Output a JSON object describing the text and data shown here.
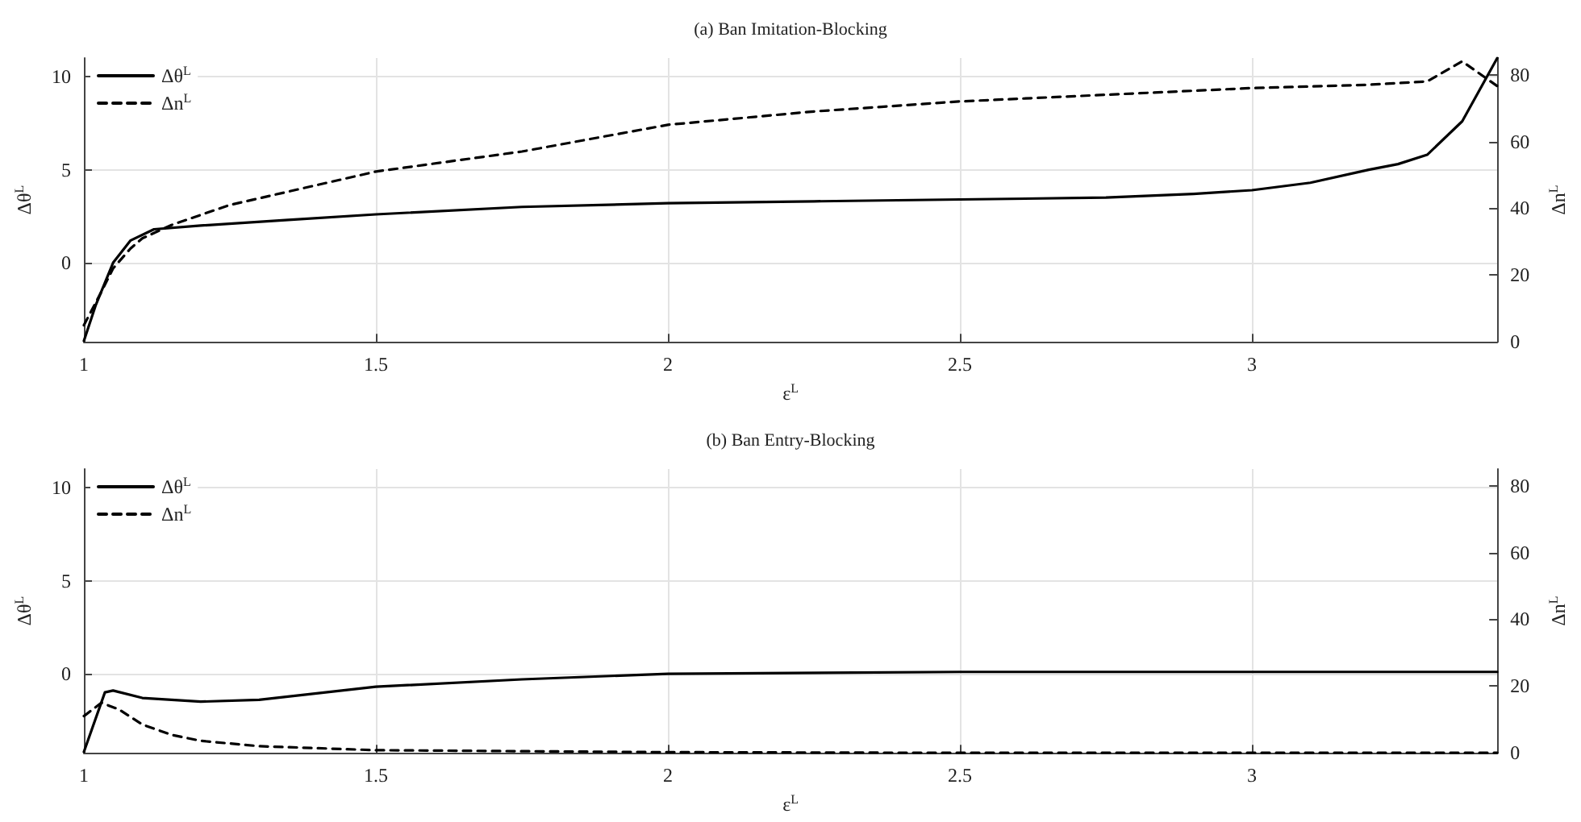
{
  "chart_data": [
    {
      "type": "line",
      "title": "(a) Ban Imitation-Blocking",
      "xlabel": "ε$^{L}$",
      "ylabel": "Δθ$^{L}$",
      "y2label": "Δn$^{L}$",
      "xlim": [
        1,
        3.42
      ],
      "xticks": [
        1,
        1.5,
        2,
        2.5,
        3
      ],
      "ylim": [
        -4.25,
        11
      ],
      "yticks": [
        0,
        5,
        10
      ],
      "y2lim": [
        0,
        85
      ],
      "y2ticks": [
        0,
        20,
        40,
        60,
        80
      ],
      "grid": true,
      "legend": "top left",
      "marker": "none",
      "series": [
        {
          "name": "Δθ$^{L}$",
          "color": "#000000",
          "line_style": "solid",
          "x": [
            1,
            1.02,
            1.05,
            1.08,
            1.12,
            1.2,
            1.35,
            1.5,
            1.75,
            2,
            2.25,
            2.5,
            2.75,
            2.9,
            3,
            3.1,
            3.2,
            3.25,
            3.3,
            3.36,
            3.42
          ],
          "values": [
            -4.2,
            -2.3,
            0,
            1.2,
            1.8,
            2.0,
            2.3,
            2.6,
            3.0,
            3.2,
            3.3,
            3.4,
            3.5,
            3.7,
            3.9,
            4.3,
            5.0,
            5.3,
            5.8,
            7.6,
            11.0
          ]
        },
        {
          "name": "Δn$^{L}$",
          "color": "#000000",
          "line_style": "dashed",
          "axis": "y2",
          "x": [
            1,
            1.03,
            1.05,
            1.08,
            1.1,
            1.15,
            1.25,
            1.5,
            1.75,
            2,
            2.25,
            2.5,
            2.75,
            3,
            3.2,
            3.3,
            3.36,
            3.42
          ],
          "values": [
            5,
            15,
            22,
            28,
            31,
            35,
            41,
            51,
            57,
            65,
            69,
            72,
            74,
            76,
            77,
            78,
            84,
            76.6
          ]
        }
      ]
    },
    {
      "type": "line",
      "title": "(b) Ban Entry-Blocking",
      "xlabel": "ε$^{L}$",
      "ylabel": "Δθ$^{L}$",
      "y2label": "Δn$^{L}$",
      "xlim": [
        1,
        3.42
      ],
      "xticks": [
        1,
        1.5,
        2,
        2.5,
        3
      ],
      "ylim": [
        -4.25,
        11
      ],
      "yticks": [
        0,
        5,
        10
      ],
      "y2lim": [
        0,
        85
      ],
      "y2ticks": [
        0,
        20,
        40,
        60,
        80
      ],
      "grid": true,
      "legend": "top left",
      "marker": "none",
      "series": [
        {
          "name": "Δθ$^{L}$",
          "color": "#000000",
          "line_style": "solid",
          "x": [
            1,
            1.036,
            1.05,
            1.1,
            1.2,
            1.3,
            1.5,
            1.75,
            2,
            2.5,
            3,
            3.42
          ],
          "values": [
            -4.2,
            -1.0,
            -0.9,
            -1.3,
            -1.5,
            -1.4,
            -0.7,
            -0.3,
            0,
            0.1,
            0.1,
            0.1
          ]
        },
        {
          "name": "Δn$^{L}$",
          "color": "#000000",
          "line_style": "dashed",
          "axis": "y2",
          "x": [
            1,
            1.03,
            1.06,
            1.1,
            1.15,
            1.2,
            1.3,
            1.5,
            2,
            2.5,
            3,
            3.42
          ],
          "values": [
            11,
            15,
            13,
            8.5,
            5.4,
            3.6,
            2,
            0.8,
            0.2,
            0,
            0,
            0
          ]
        }
      ]
    }
  ]
}
